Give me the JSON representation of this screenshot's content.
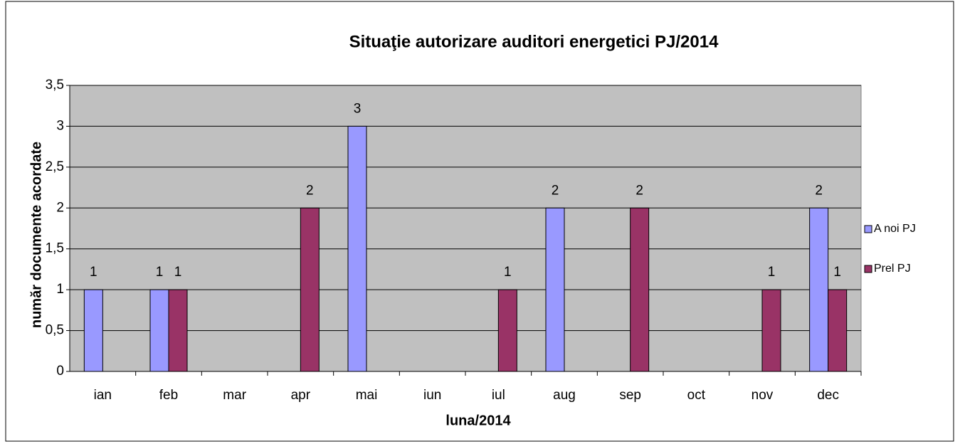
{
  "chart_data": {
    "type": "bar",
    "title": "Situaţie autorizare auditori energetici PJ/2014",
    "x_label": "luna/2014",
    "y_label": "număr documente acordate",
    "categories": [
      "ian",
      "feb",
      "mar",
      "apr",
      "mai",
      "iun",
      "iul",
      "aug",
      "sep",
      "oct",
      "nov",
      "dec"
    ],
    "series": [
      {
        "name": "A noi PJ",
        "color": "#9999ff",
        "values": [
          1,
          1,
          null,
          null,
          3,
          null,
          null,
          2,
          null,
          null,
          null,
          2
        ]
      },
      {
        "name": "Prel PJ",
        "color": "#993366",
        "values": [
          null,
          1,
          null,
          2,
          null,
          null,
          1,
          null,
          2,
          null,
          1,
          1
        ]
      }
    ],
    "ylim": [
      0,
      3.5
    ],
    "yticks": [
      0,
      {
        "value": 0.5,
        "label": "0,5"
      },
      1,
      {
        "value": 1.5,
        "label": "1,5"
      },
      2,
      {
        "value": 2.5,
        "label": "2,5"
      },
      3,
      {
        "value": 3.5,
        "label": "3,5"
      }
    ],
    "grid": true,
    "legend": "right"
  }
}
